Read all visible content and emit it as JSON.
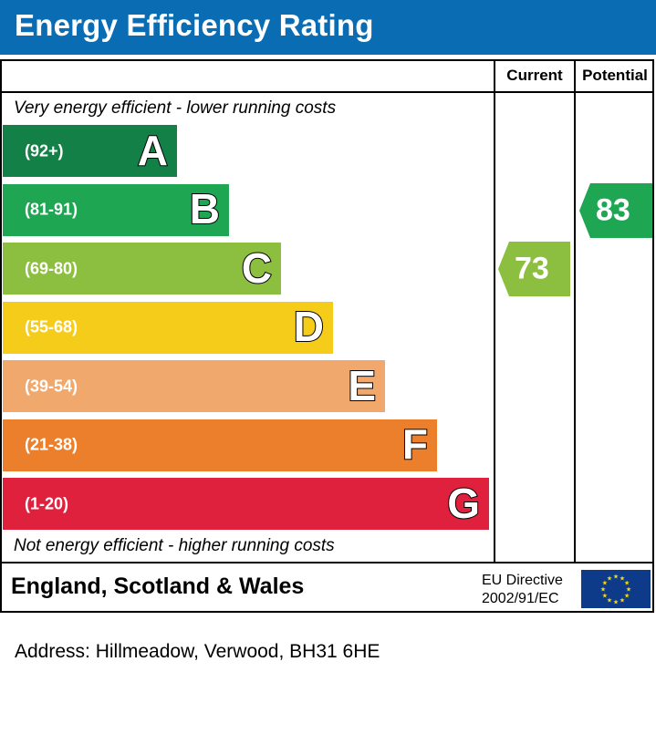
{
  "header": {
    "title": "Energy Efficiency Rating"
  },
  "columns": {
    "current": "Current",
    "potential": "Potential"
  },
  "captions": {
    "top": "Very energy efficient - lower running costs",
    "bottom": "Not energy efficient - higher running costs"
  },
  "footer": {
    "region": "England, Scotland & Wales",
    "directive_line1": "EU Directive",
    "directive_line2": "2002/91/EC"
  },
  "address": "Address: Hillmeadow, Verwood, BH31 6HE",
  "chart_data": {
    "type": "bar",
    "title": "Energy Efficiency Rating",
    "bands": [
      {
        "letter": "A",
        "range": "(92+)",
        "min": 92,
        "max": 100,
        "color": "#138047"
      },
      {
        "letter": "B",
        "range": "(81-91)",
        "min": 81,
        "max": 91,
        "color": "#1fa653"
      },
      {
        "letter": "C",
        "range": "(69-80)",
        "min": 69,
        "max": 80,
        "color": "#8cbf3f"
      },
      {
        "letter": "D",
        "range": "(55-68)",
        "min": 55,
        "max": 68,
        "color": "#f5cc1a"
      },
      {
        "letter": "E",
        "range": "(39-54)",
        "min": 39,
        "max": 54,
        "color": "#f0a86c"
      },
      {
        "letter": "F",
        "range": "(21-38)",
        "min": 21,
        "max": 38,
        "color": "#ec7f2b"
      },
      {
        "letter": "G",
        "range": "(1-20)",
        "min": 1,
        "max": 20,
        "color": "#e0213d"
      }
    ],
    "current": {
      "value": 73,
      "band": "C",
      "color": "#8cbf3f"
    },
    "potential": {
      "value": 83,
      "band": "B",
      "color": "#1fa653"
    }
  }
}
